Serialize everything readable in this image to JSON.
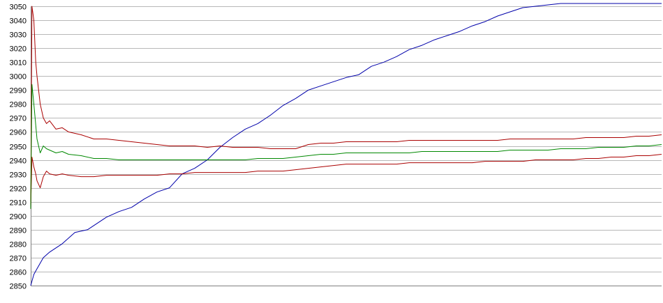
{
  "chart_data": {
    "type": "line",
    "title": "",
    "xlabel": "",
    "ylabel": "",
    "ylim": [
      2850,
      3050
    ],
    "yticks": [
      2850,
      2860,
      2870,
      2880,
      2890,
      2900,
      2910,
      2920,
      2930,
      2940,
      2950,
      2960,
      2970,
      2980,
      2990,
      3000,
      3010,
      3020,
      3030,
      3040,
      3050
    ],
    "xlim": [
      0,
      100
    ],
    "grid": "horizontal",
    "legend": "none",
    "colors": {
      "background": "#ffffff",
      "grid": "#b8b8b8",
      "axis": "#808080",
      "series_blue": "#0000aa",
      "series_red": "#aa0000",
      "series_green": "#008800"
    },
    "series": [
      {
        "color": "#0000aa",
        "x": [
          0,
          0.5,
          1,
          2,
          3,
          5,
          7,
          9,
          12,
          14,
          16,
          18,
          20,
          22,
          24,
          26,
          28,
          30,
          32,
          34,
          36,
          38,
          40,
          42,
          44,
          46,
          48,
          50,
          52,
          54,
          56,
          58,
          60,
          62,
          64,
          66,
          68,
          70,
          72,
          74,
          76,
          78,
          80,
          82,
          84,
          86,
          88,
          90,
          92,
          94,
          96,
          98,
          100
        ],
        "values": [
          2850,
          2858,
          2862,
          2870,
          2874,
          2880,
          2888,
          2890,
          2899,
          2903,
          2906,
          2912,
          2917,
          2920,
          2930,
          2934,
          2940,
          2949,
          2956,
          2962,
          2966,
          2972,
          2979,
          2984,
          2990,
          2993,
          2996,
          2999,
          3001,
          3007,
          3010,
          3014,
          3019,
          3022,
          3026,
          3029,
          3032,
          3036,
          3039,
          3043,
          3046,
          3049,
          3050,
          3051,
          3052,
          3052,
          3052,
          3052,
          3052,
          3052,
          3052,
          3052,
          3052
        ]
      },
      {
        "color": "#aa0000",
        "x": [
          0,
          0.2,
          0.5,
          0.8,
          1,
          1.5,
          2,
          2.5,
          3,
          4,
          5,
          6,
          8,
          10,
          12,
          14,
          16,
          18,
          20,
          22,
          24,
          26,
          28,
          30,
          32,
          34,
          36,
          38,
          40,
          42,
          44,
          46,
          48,
          50,
          52,
          54,
          56,
          58,
          60,
          62,
          64,
          66,
          68,
          70,
          72,
          74,
          76,
          78,
          80,
          82,
          84,
          86,
          88,
          90,
          92,
          94,
          96,
          98,
          100
        ],
        "values": [
          2905,
          3050,
          3040,
          3010,
          3000,
          2980,
          2970,
          2966,
          2968,
          2962,
          2963,
          2960,
          2958,
          2955,
          2955,
          2954,
          2953,
          2952,
          2951,
          2950,
          2950,
          2950,
          2949,
          2950,
          2949,
          2949,
          2949,
          2948,
          2948,
          2948,
          2951,
          2952,
          2952,
          2953,
          2953,
          2953,
          2953,
          2953,
          2954,
          2954,
          2954,
          2954,
          2954,
          2954,
          2954,
          2954,
          2955,
          2955,
          2955,
          2955,
          2955,
          2955,
          2956,
          2956,
          2956,
          2956,
          2957,
          2957,
          2958
        ]
      },
      {
        "color": "#aa0000",
        "x": [
          0,
          0.2,
          0.5,
          0.8,
          1,
          1.5,
          2,
          2.5,
          3,
          4,
          5,
          6,
          8,
          10,
          12,
          14,
          16,
          18,
          20,
          22,
          24,
          26,
          28,
          30,
          32,
          34,
          36,
          38,
          40,
          42,
          44,
          46,
          48,
          50,
          52,
          54,
          56,
          58,
          60,
          62,
          64,
          66,
          68,
          70,
          72,
          74,
          76,
          78,
          80,
          82,
          84,
          86,
          88,
          90,
          92,
          94,
          96,
          98,
          100
        ],
        "values": [
          2905,
          2942,
          2935,
          2930,
          2925,
          2920,
          2928,
          2932,
          2930,
          2929,
          2930,
          2929,
          2928,
          2928,
          2929,
          2929,
          2929,
          2929,
          2929,
          2930,
          2930,
          2931,
          2931,
          2931,
          2931,
          2931,
          2932,
          2932,
          2932,
          2933,
          2934,
          2935,
          2936,
          2937,
          2937,
          2937,
          2937,
          2937,
          2938,
          2938,
          2938,
          2938,
          2938,
          2938,
          2939,
          2939,
          2939,
          2939,
          2940,
          2940,
          2940,
          2940,
          2941,
          2941,
          2942,
          2942,
          2943,
          2943,
          2944
        ]
      },
      {
        "color": "#008800",
        "x": [
          0,
          0.2,
          0.5,
          0.8,
          1,
          1.5,
          2,
          2.5,
          3,
          4,
          5,
          6,
          8,
          10,
          12,
          14,
          16,
          18,
          20,
          22,
          24,
          26,
          28,
          30,
          32,
          34,
          36,
          38,
          40,
          42,
          44,
          46,
          48,
          50,
          52,
          54,
          56,
          58,
          60,
          62,
          64,
          66,
          68,
          70,
          72,
          74,
          76,
          78,
          80,
          82,
          84,
          86,
          88,
          90,
          92,
          94,
          96,
          98,
          100
        ],
        "values": [
          2905,
          2994,
          2980,
          2965,
          2955,
          2945,
          2950,
          2948,
          2947,
          2945,
          2946,
          2944,
          2943,
          2941,
          2941,
          2940,
          2940,
          2940,
          2940,
          2940,
          2940,
          2940,
          2940,
          2940,
          2940,
          2940,
          2941,
          2941,
          2941,
          2942,
          2943,
          2944,
          2944,
          2945,
          2945,
          2945,
          2945,
          2945,
          2945,
          2946,
          2946,
          2946,
          2946,
          2946,
          2946,
          2946,
          2947,
          2947,
          2947,
          2947,
          2948,
          2948,
          2948,
          2949,
          2949,
          2949,
          2950,
          2950,
          2951
        ]
      }
    ]
  }
}
